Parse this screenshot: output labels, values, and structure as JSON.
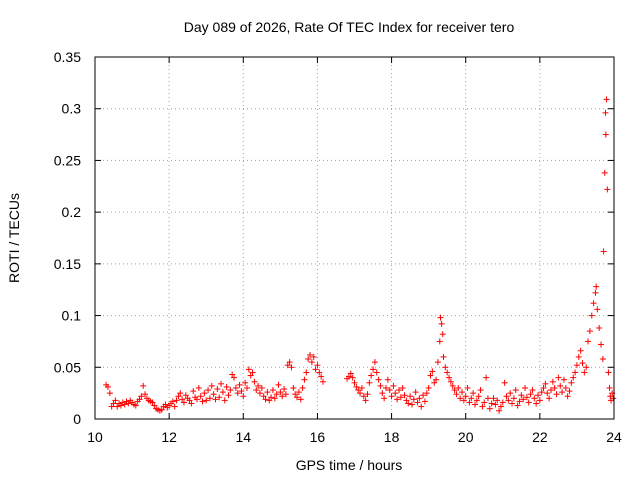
{
  "chart_data": {
    "type": "scatter",
    "title": "Day 089 of 2026, Rate Of TEC Index for receiver tero",
    "xlabel": "GPS time / hours",
    "ylabel": "ROTI / TECUs",
    "xlim": [
      10,
      24
    ],
    "ylim": [
      0,
      0.35
    ],
    "x_ticks": [
      10,
      12,
      14,
      16,
      18,
      20,
      22,
      24
    ],
    "x_tick_labels": [
      "10",
      "12",
      "14",
      "16",
      "18",
      "20",
      "22",
      "24"
    ],
    "y_ticks": [
      0,
      0.05,
      0.1,
      0.15,
      0.2,
      0.25,
      0.3,
      0.35
    ],
    "y_tick_labels": [
      "0",
      "0.05",
      "0.1",
      "0.15",
      "0.2",
      "0.25",
      "0.3",
      "0.35"
    ],
    "grid": true,
    "marker": "+",
    "color": "#ff0000",
    "series": [
      {
        "name": "ROTI",
        "points": [
          [
            10.3,
            0.033
          ],
          [
            10.35,
            0.031
          ],
          [
            10.4,
            0.025
          ],
          [
            10.45,
            0.012
          ],
          [
            10.5,
            0.015
          ],
          [
            10.55,
            0.018
          ],
          [
            10.6,
            0.012
          ],
          [
            10.65,
            0.015
          ],
          [
            10.7,
            0.013
          ],
          [
            10.75,
            0.016
          ],
          [
            10.8,
            0.014
          ],
          [
            10.85,
            0.017
          ],
          [
            10.9,
            0.015
          ],
          [
            10.95,
            0.018
          ],
          [
            11.0,
            0.016
          ],
          [
            11.05,
            0.014
          ],
          [
            11.1,
            0.013
          ],
          [
            11.15,
            0.017
          ],
          [
            11.2,
            0.019
          ],
          [
            11.25,
            0.022
          ],
          [
            11.3,
            0.032
          ],
          [
            11.35,
            0.024
          ],
          [
            11.4,
            0.02
          ],
          [
            11.45,
            0.018
          ],
          [
            11.5,
            0.017
          ],
          [
            11.55,
            0.016
          ],
          [
            11.6,
            0.013
          ],
          [
            11.65,
            0.01
          ],
          [
            11.7,
            0.009
          ],
          [
            11.75,
            0.008
          ],
          [
            11.8,
            0.009
          ],
          [
            11.85,
            0.012
          ],
          [
            11.9,
            0.014
          ],
          [
            11.95,
            0.011
          ],
          [
            12.0,
            0.013
          ],
          [
            12.05,
            0.015
          ],
          [
            12.1,
            0.017
          ],
          [
            12.15,
            0.012
          ],
          [
            12.2,
            0.018
          ],
          [
            12.25,
            0.022
          ],
          [
            12.3,
            0.025
          ],
          [
            12.35,
            0.019
          ],
          [
            12.4,
            0.016
          ],
          [
            12.45,
            0.023
          ],
          [
            12.5,
            0.02
          ],
          [
            12.55,
            0.018
          ],
          [
            12.6,
            0.015
          ],
          [
            12.65,
            0.027
          ],
          [
            12.7,
            0.021
          ],
          [
            12.75,
            0.019
          ],
          [
            12.8,
            0.03
          ],
          [
            12.85,
            0.022
          ],
          [
            12.9,
            0.017
          ],
          [
            12.95,
            0.025
          ],
          [
            13.0,
            0.018
          ],
          [
            13.05,
            0.028
          ],
          [
            13.1,
            0.02
          ],
          [
            13.15,
            0.032
          ],
          [
            13.2,
            0.024
          ],
          [
            13.25,
            0.019
          ],
          [
            13.3,
            0.029
          ],
          [
            13.35,
            0.021
          ],
          [
            13.4,
            0.034
          ],
          [
            13.45,
            0.026
          ],
          [
            13.5,
            0.018
          ],
          [
            13.55,
            0.031
          ],
          [
            13.6,
            0.023
          ],
          [
            13.65,
            0.028
          ],
          [
            13.7,
            0.043
          ],
          [
            13.75,
            0.04
          ],
          [
            13.8,
            0.03
          ],
          [
            13.85,
            0.025
          ],
          [
            13.9,
            0.033
          ],
          [
            13.95,
            0.027
          ],
          [
            14.0,
            0.022
          ],
          [
            14.05,
            0.035
          ],
          [
            14.1,
            0.03
          ],
          [
            14.15,
            0.048
          ],
          [
            14.2,
            0.042
          ],
          [
            14.25,
            0.045
          ],
          [
            14.3,
            0.036
          ],
          [
            14.35,
            0.028
          ],
          [
            14.4,
            0.032
          ],
          [
            14.45,
            0.025
          ],
          [
            14.5,
            0.03
          ],
          [
            14.55,
            0.022
          ],
          [
            14.6,
            0.019
          ],
          [
            14.65,
            0.026
          ],
          [
            14.7,
            0.018
          ],
          [
            14.75,
            0.021
          ],
          [
            14.8,
            0.028
          ],
          [
            14.85,
            0.02
          ],
          [
            14.9,
            0.024
          ],
          [
            14.95,
            0.033
          ],
          [
            15.0,
            0.026
          ],
          [
            15.05,
            0.022
          ],
          [
            15.1,
            0.029
          ],
          [
            15.15,
            0.024
          ],
          [
            15.2,
            0.052
          ],
          [
            15.25,
            0.055
          ],
          [
            15.3,
            0.05
          ],
          [
            15.35,
            0.03
          ],
          [
            15.4,
            0.024
          ],
          [
            15.45,
            0.021
          ],
          [
            15.5,
            0.026
          ],
          [
            15.55,
            0.019
          ],
          [
            15.6,
            0.03
          ],
          [
            15.65,
            0.038
          ],
          [
            15.7,
            0.045
          ],
          [
            15.75,
            0.058
          ],
          [
            15.8,
            0.062
          ],
          [
            15.85,
            0.055
          ],
          [
            15.9,
            0.06
          ],
          [
            15.95,
            0.048
          ],
          [
            16.0,
            0.052
          ],
          [
            16.05,
            0.045
          ],
          [
            16.1,
            0.041
          ],
          [
            16.15,
            0.036
          ],
          [
            16.8,
            0.039
          ],
          [
            16.85,
            0.041
          ],
          [
            16.9,
            0.044
          ],
          [
            16.95,
            0.04
          ],
          [
            17.0,
            0.035
          ],
          [
            17.05,
            0.031
          ],
          [
            17.1,
            0.028
          ],
          [
            17.15,
            0.025
          ],
          [
            17.2,
            0.03
          ],
          [
            17.25,
            0.022
          ],
          [
            17.3,
            0.018
          ],
          [
            17.35,
            0.024
          ],
          [
            17.4,
            0.035
          ],
          [
            17.45,
            0.042
          ],
          [
            17.5,
            0.048
          ],
          [
            17.55,
            0.055
          ],
          [
            17.6,
            0.045
          ],
          [
            17.65,
            0.038
          ],
          [
            17.7,
            0.032
          ],
          [
            17.75,
            0.025
          ],
          [
            17.8,
            0.02
          ],
          [
            17.85,
            0.03
          ],
          [
            17.9,
            0.038
          ],
          [
            17.95,
            0.028
          ],
          [
            18.0,
            0.022
          ],
          [
            18.05,
            0.032
          ],
          [
            18.1,
            0.025
          ],
          [
            18.15,
            0.019
          ],
          [
            18.2,
            0.028
          ],
          [
            18.25,
            0.021
          ],
          [
            18.3,
            0.03
          ],
          [
            18.35,
            0.023
          ],
          [
            18.4,
            0.018
          ],
          [
            18.45,
            0.015
          ],
          [
            18.5,
            0.022
          ],
          [
            18.55,
            0.014
          ],
          [
            18.6,
            0.019
          ],
          [
            18.65,
            0.026
          ],
          [
            18.7,
            0.016
          ],
          [
            18.75,
            0.02
          ],
          [
            18.8,
            0.012
          ],
          [
            18.85,
            0.023
          ],
          [
            18.9,
            0.017
          ],
          [
            18.95,
            0.025
          ],
          [
            19.0,
            0.03
          ],
          [
            19.05,
            0.042
          ],
          [
            19.1,
            0.046
          ],
          [
            19.15,
            0.035
          ],
          [
            19.2,
            0.038
          ],
          [
            19.25,
            0.055
          ],
          [
            19.3,
            0.075
          ],
          [
            19.32,
            0.098
          ],
          [
            19.35,
            0.092
          ],
          [
            19.38,
            0.082
          ],
          [
            19.4,
            0.06
          ],
          [
            19.45,
            0.05
          ],
          [
            19.5,
            0.045
          ],
          [
            19.55,
            0.04
          ],
          [
            19.6,
            0.036
          ],
          [
            19.65,
            0.032
          ],
          [
            19.7,
            0.028
          ],
          [
            19.75,
            0.024
          ],
          [
            19.8,
            0.03
          ],
          [
            19.85,
            0.02
          ],
          [
            19.9,
            0.026
          ],
          [
            19.95,
            0.018
          ],
          [
            20.0,
            0.022
          ],
          [
            20.05,
            0.03
          ],
          [
            20.1,
            0.016
          ],
          [
            20.15,
            0.02
          ],
          [
            20.2,
            0.025
          ],
          [
            20.25,
            0.014
          ],
          [
            20.3,
            0.018
          ],
          [
            20.35,
            0.022
          ],
          [
            20.4,
            0.028
          ],
          [
            20.45,
            0.012
          ],
          [
            20.5,
            0.016
          ],
          [
            20.55,
            0.04
          ],
          [
            20.6,
            0.02
          ],
          [
            20.65,
            0.01
          ],
          [
            20.7,
            0.015
          ],
          [
            20.75,
            0.02
          ],
          [
            20.8,
            0.014
          ],
          [
            20.85,
            0.018
          ],
          [
            20.9,
            0.008
          ],
          [
            20.95,
            0.012
          ],
          [
            21.0,
            0.016
          ],
          [
            21.05,
            0.035
          ],
          [
            21.1,
            0.022
          ],
          [
            21.15,
            0.018
          ],
          [
            21.2,
            0.025
          ],
          [
            21.25,
            0.015
          ],
          [
            21.3,
            0.02
          ],
          [
            21.35,
            0.028
          ],
          [
            21.4,
            0.013
          ],
          [
            21.45,
            0.017
          ],
          [
            21.5,
            0.023
          ],
          [
            21.55,
            0.019
          ],
          [
            21.6,
            0.03
          ],
          [
            21.65,
            0.021
          ],
          [
            21.7,
            0.016
          ],
          [
            21.75,
            0.024
          ],
          [
            21.8,
            0.028
          ],
          [
            21.85,
            0.02
          ],
          [
            21.9,
            0.015
          ],
          [
            21.95,
            0.023
          ],
          [
            22.0,
            0.018
          ],
          [
            22.05,
            0.026
          ],
          [
            22.1,
            0.03
          ],
          [
            22.15,
            0.034
          ],
          [
            22.2,
            0.025
          ],
          [
            22.25,
            0.02
          ],
          [
            22.3,
            0.028
          ],
          [
            22.35,
            0.036
          ],
          [
            22.4,
            0.03
          ],
          [
            22.45,
            0.024
          ],
          [
            22.5,
            0.04
          ],
          [
            22.55,
            0.032
          ],
          [
            22.6,
            0.026
          ],
          [
            22.65,
            0.038
          ],
          [
            22.7,
            0.03
          ],
          [
            22.75,
            0.022
          ],
          [
            22.8,
            0.027
          ],
          [
            22.85,
            0.035
          ],
          [
            22.9,
            0.04
          ],
          [
            22.95,
            0.045
          ],
          [
            23.0,
            0.052
          ],
          [
            23.05,
            0.06
          ],
          [
            23.1,
            0.066
          ],
          [
            23.15,
            0.054
          ],
          [
            23.2,
            0.045
          ],
          [
            23.25,
            0.05
          ],
          [
            23.3,
            0.075
          ],
          [
            23.35,
            0.085
          ],
          [
            23.4,
            0.1
          ],
          [
            23.45,
            0.112
          ],
          [
            23.5,
            0.122
          ],
          [
            23.52,
            0.128
          ],
          [
            23.55,
            0.106
          ],
          [
            23.6,
            0.088
          ],
          [
            23.65,
            0.072
          ],
          [
            23.7,
            0.058
          ],
          [
            23.72,
            0.162
          ],
          [
            23.75,
            0.238
          ],
          [
            23.77,
            0.296
          ],
          [
            23.78,
            0.275
          ],
          [
            23.8,
            0.309
          ],
          [
            23.82,
            0.222
          ],
          [
            23.85,
            0.045
          ],
          [
            23.88,
            0.03
          ],
          [
            23.9,
            0.022
          ],
          [
            23.92,
            0.018
          ],
          [
            23.95,
            0.025
          ],
          [
            23.98,
            0.02
          ]
        ]
      }
    ]
  }
}
